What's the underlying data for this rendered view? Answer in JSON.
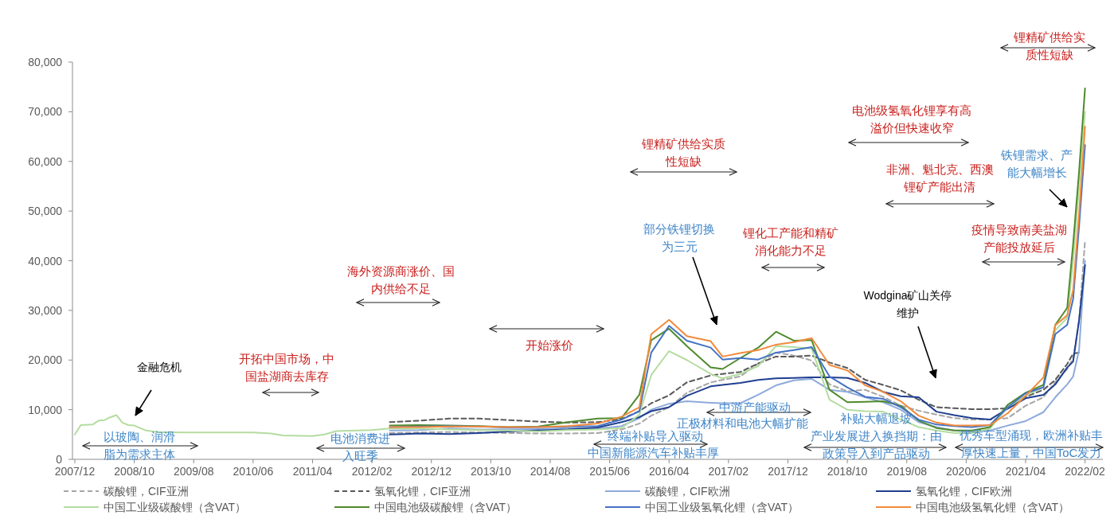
{
  "chart_data": {
    "type": "line",
    "xlim": [
      "2007-12",
      "2022-05"
    ],
    "xticks": [
      {
        "value": "2007-12",
        "label": "2007/12"
      },
      {
        "value": "2008-10",
        "label": "2008/10"
      },
      {
        "value": "2009-08",
        "label": "2009/08"
      },
      {
        "value": "2010-06",
        "label": "2010/06"
      },
      {
        "value": "2011-04",
        "label": "2011/04"
      },
      {
        "value": "2012-02",
        "label": "2012/02"
      },
      {
        "value": "2012-12",
        "label": "2012/12"
      },
      {
        "value": "2013-10",
        "label": "2013/10"
      },
      {
        "value": "2014-08",
        "label": "2014/08"
      },
      {
        "value": "2015-06",
        "label": "2015/06"
      },
      {
        "value": "2016-04",
        "label": "2016/04"
      },
      {
        "value": "2017-02",
        "label": "2017/02"
      },
      {
        "value": "2017-12",
        "label": "2017/12"
      },
      {
        "value": "2018-10",
        "label": "2018/10"
      },
      {
        "value": "2019-08",
        "label": "2019/08"
      },
      {
        "value": "2020-06",
        "label": "2020/06"
      },
      {
        "value": "2021-04",
        "label": "2021/04"
      },
      {
        "value": "2022-02",
        "label": "2022/02"
      }
    ],
    "ylim": [
      0,
      80000
    ],
    "yticks": [
      0,
      {
        "value": 10000,
        "label": "10,000"
      },
      {
        "value": 20000,
        "label": "20,000"
      },
      {
        "value": 30000,
        "label": "30,000"
      },
      {
        "value": 40000,
        "label": "40,000"
      },
      {
        "value": 50000,
        "label": "50,000"
      },
      {
        "value": 60000,
        "label": "60,000"
      },
      {
        "value": 70000,
        "label": "70,000"
      },
      {
        "value": 80000,
        "label": "80,000"
      }
    ],
    "legend": "bottom",
    "x": [
      "2012-05",
      "2012-10",
      "2013-03",
      "2013-08",
      "2014-01",
      "2014-06",
      "2014-11",
      "2015-04",
      "2015-08",
      "2015-11",
      "2016-01",
      "2016-04",
      "2016-07",
      "2016-11",
      "2017-01",
      "2017-04",
      "2017-07",
      "2017-10",
      "2018-01",
      "2018-04",
      "2018-07",
      "2018-10",
      "2019-01",
      "2019-04",
      "2019-07",
      "2019-10",
      "2020-01",
      "2020-04",
      "2020-07",
      "2020-10",
      "2021-01",
      "2021-04",
      "2021-07",
      "2021-09",
      "2021-11",
      "2021-12",
      "2022-01",
      "2022-02"
    ],
    "series": [
      {
        "name": "碳酸锂，CIF亚洲",
        "color": "#a6a6a6",
        "line_style": "dashed",
        "values": [
          5300,
          5400,
          5500,
          5400,
          5300,
          5200,
          5200,
          5300,
          6000,
          7200,
          8800,
          10500,
          13400,
          15500,
          16000,
          16700,
          19300,
          21500,
          20900,
          19900,
          15100,
          13700,
          14000,
          12600,
          10800,
          9800,
          9000,
          8300,
          8000,
          8000,
          8300,
          10800,
          12500,
          15600,
          18200,
          20300,
          28000,
          44000
        ]
      },
      {
        "name": "氢氧化锂，CIF亚洲",
        "color": "#595959",
        "line_style": "dashed",
        "values": [
          7500,
          7800,
          8200,
          8200,
          7900,
          7600,
          7400,
          7500,
          8100,
          9700,
          11300,
          12900,
          15500,
          16900,
          17200,
          17600,
          19300,
          20700,
          20700,
          20900,
          19500,
          18400,
          16000,
          15000,
          13900,
          12000,
          10500,
          10300,
          10100,
          10100,
          10300,
          12600,
          14000,
          16000,
          19200,
          21300,
          21500,
          null
        ]
      },
      {
        "name": "碳酸锂，CIF欧洲",
        "color": "#8eaadb",
        "values": [
          5800,
          5900,
          6200,
          6000,
          6000,
          6100,
          6300,
          6200,
          6700,
          8300,
          10000,
          11200,
          11700,
          11400,
          11300,
          11300,
          13000,
          14900,
          15900,
          16200,
          14000,
          13600,
          12500,
          11500,
          10000,
          7500,
          6500,
          5800,
          5500,
          5800,
          6800,
          7700,
          9500,
          12500,
          15100,
          16700,
          22000,
          40000
        ]
      },
      {
        "name": "氢氧化锂，CIF欧洲",
        "color": "#1f3f8f",
        "values": [
          5000,
          5200,
          5100,
          5300,
          5600,
          5800,
          6000,
          6400,
          7500,
          8500,
          9700,
          10500,
          12800,
          14700,
          15000,
          15400,
          16000,
          16300,
          16400,
          16500,
          16500,
          16400,
          15400,
          13600,
          12700,
          12500,
          9600,
          8900,
          8300,
          8000,
          10200,
          12300,
          13000,
          15100,
          18500,
          19700,
          28000,
          39100
        ]
      },
      {
        "name": "中国工业级碳酸锂（含VAT）",
        "color": "#b4dca0",
        "x": [
          "2007-12",
          "2008-01",
          "2008-03",
          "2008-04",
          "2008-05",
          "2008-06",
          "2008-07",
          "2008-08",
          "2008-09",
          "2008-10",
          "2008-12",
          "2009-02",
          "2009-06",
          "2010-06",
          "2010-09",
          "2010-11",
          "2011-04",
          "2011-06",
          "2011-08",
          "2012-02",
          "2012-05",
          "2012-10",
          "2013-03",
          "2013-08",
          "2014-01",
          "2014-06",
          "2014-11",
          "2015-04",
          "2015-08",
          "2015-11",
          "2016-01",
          "2016-04",
          "2016-07",
          "2016-11",
          "2017-01",
          "2017-04",
          "2017-07",
          "2017-10",
          "2018-01",
          "2018-04",
          "2018-07",
          "2018-10",
          "2019-01",
          "2019-04",
          "2019-07",
          "2019-10",
          "2020-01",
          "2020-04",
          "2020-07",
          "2020-10",
          "2021-01",
          "2021-04",
          "2021-07",
          "2021-09",
          "2021-11",
          "2021-12",
          "2022-01",
          "2022-02"
        ],
        "values": [
          5000,
          6900,
          7000,
          7800,
          7900,
          8500,
          8900,
          7400,
          6900,
          6800,
          5800,
          5500,
          5400,
          5400,
          5200,
          4800,
          4700,
          5000,
          5700,
          5900,
          6200,
          6200,
          6000,
          5900,
          5800,
          5600,
          5900,
          6000,
          6300,
          9000,
          17000,
          21800,
          20000,
          17200,
          16300,
          17200,
          18800,
          22800,
          22600,
          22300,
          12000,
          10000,
          9700,
          9600,
          8000,
          6500,
          5800,
          5300,
          5300,
          6200,
          10500,
          12800,
          14500,
          26000,
          28500,
          40000,
          55000,
          70000
        ]
      },
      {
        "name": "中国电池级碳酸锂（含VAT）",
        "color": "#4f8a2e",
        "values": [
          6800,
          6900,
          6800,
          6700,
          6500,
          6600,
          7500,
          8200,
          8300,
          13000,
          24000,
          26300,
          22800,
          18500,
          18200,
          20400,
          22500,
          25700,
          23900,
          24000,
          14000,
          11500,
          11600,
          11700,
          10800,
          7800,
          6300,
          5800,
          5800,
          6500,
          11000,
          13400,
          15000,
          27100,
          30500,
          43400,
          58000,
          74700
        ]
      },
      {
        "name": "中国工业级氢氧化锂（含VAT）",
        "color": "#4472c4",
        "values": [
          6500,
          6600,
          6700,
          6600,
          6400,
          6500,
          6600,
          6700,
          8000,
          9700,
          21500,
          26900,
          23900,
          22500,
          20100,
          20400,
          20100,
          21500,
          22000,
          22600,
          16700,
          14500,
          12600,
          12200,
          10500,
          8000,
          7000,
          6700,
          6500,
          6900,
          10500,
          13300,
          14500,
          25200,
          27100,
          32300,
          47000,
          63300
        ]
      },
      {
        "name": "中国电池级氢氧化锂（含VAT）",
        "color": "#f28a3c",
        "values": [
          6500,
          6500,
          6600,
          6600,
          6500,
          6500,
          6700,
          7200,
          8600,
          10500,
          25200,
          28100,
          24800,
          23800,
          20700,
          21400,
          22000,
          23100,
          23600,
          24400,
          19000,
          17900,
          14900,
          13600,
          11700,
          8800,
          7400,
          6800,
          6800,
          6900,
          9300,
          12800,
          16500,
          27000,
          29000,
          34100,
          49500,
          67000
        ]
      }
    ],
    "annotations": [
      "金融危机",
      "以玻陶、润滑脂为需求主体",
      "开拓中国市场，中国盐湖商去库存",
      "电池消费进入旺季",
      "海外资源商涨价、国内供给不足",
      "开始涨价",
      "锂精矿供给实质性短缺",
      "终端补贴导入驱动",
      "中国新能源汽车补贴丰厚",
      "部分铁锂切换为三元",
      "锂化工产能和精矿消化能力不足",
      "中游产能驱动",
      "正极材料和电池大幅扩能",
      "补贴大幅退坡",
      "产业发展进入换挡期：由政策导入到产品驱动",
      "电池级氢氧化锂享有高溢价但快速收窄",
      "非洲、魁北克、西澳锂矿产能出清",
      "Wodgina矿山关停维护",
      "铁锂需求、产能大幅增长",
      "疫情导致南美盐湖产能投放延后",
      "锂精矿供给实质性短缺",
      "优秀车型涌现，欧洲补贴丰厚快速上量，中国ToC发力"
    ]
  }
}
